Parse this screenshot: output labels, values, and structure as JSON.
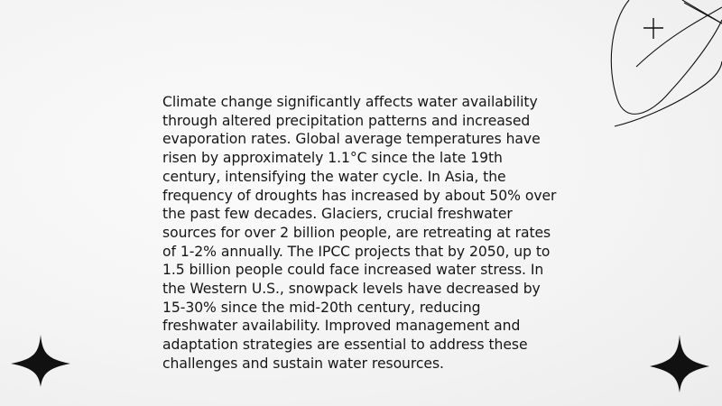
{
  "slide": {
    "body": "Climate change significantly affects water availability through altered precipitation patterns and increased evaporation rates. Global average temperatures have risen by approximately 1.1°C since the late 19th century, intensifying the water cycle. In Asia, the frequency of droughts has increased by about 50% over the past few decades. Glaciers, crucial freshwater sources for over 2 billion people, are retreating at rates of 1-2% annually. The IPCC projects that by 2050, up to 1.5 billion people could face increased water stress. In the Western U.S., snowpack levels have decreased by 15-30% since the mid-20th century, reducing freshwater availability. Improved management and adaptation strategies are essential to address these challenges and sustain water resources."
  },
  "decorations": {
    "orbit_icon": "orbit-lines-with-sparkle",
    "left_star_icon": "four-point-star",
    "right_star_icon": "four-point-star"
  },
  "colors": {
    "background": "#f6f6f6",
    "text": "#161616",
    "ink": "#111111"
  }
}
